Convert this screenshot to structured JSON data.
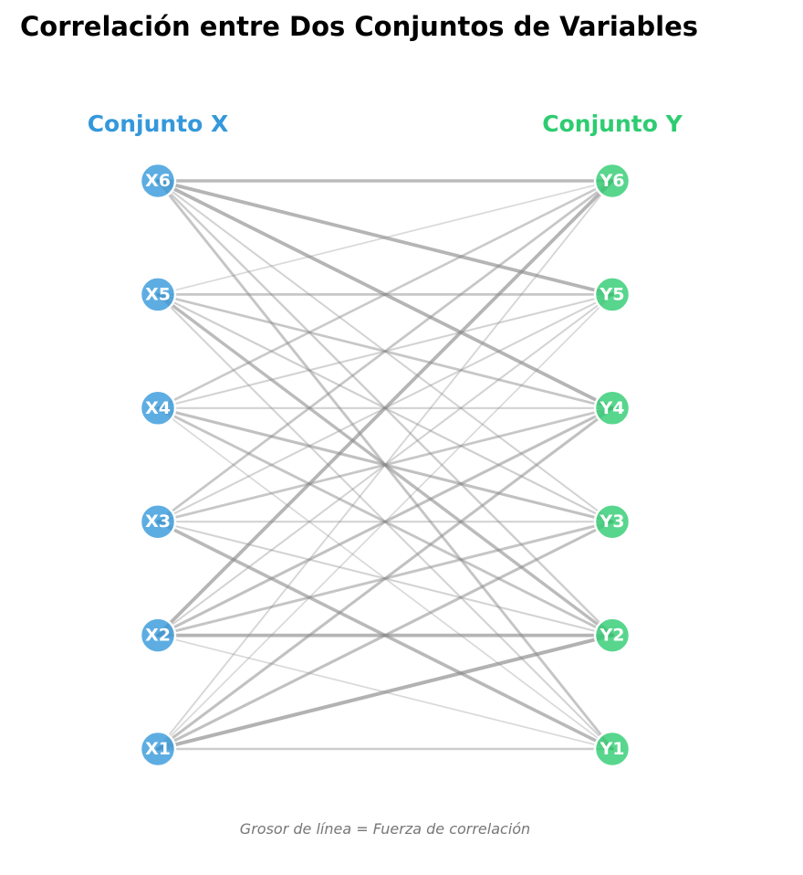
{
  "title": "Correlación entre Dos Conjuntos de Variables",
  "left_group": {
    "label": "Conjunto X",
    "color": "#3498db",
    "nodes": [
      "X1",
      "X2",
      "X3",
      "X4",
      "X5",
      "X6"
    ]
  },
  "right_group": {
    "label": "Conjunto Y",
    "color": "#2ecc71",
    "nodes": [
      "Y1",
      "Y2",
      "Y3",
      "Y4",
      "Y5",
      "Y6"
    ]
  },
  "footnote": "Grosor de línea = Fuerza de correlación",
  "edge_color": "#888888",
  "edges": [
    {
      "from": "X1",
      "to": "Y1",
      "strength": 0.4
    },
    {
      "from": "X1",
      "to": "Y2",
      "strength": 0.85
    },
    {
      "from": "X1",
      "to": "Y3",
      "strength": 0.6
    },
    {
      "from": "X1",
      "to": "Y4",
      "strength": 0.6
    },
    {
      "from": "X1",
      "to": "Y5",
      "strength": 0.2
    },
    {
      "from": "X1",
      "to": "Y6",
      "strength": 0.25
    },
    {
      "from": "X2",
      "to": "Y1",
      "strength": 0.2
    },
    {
      "from": "X2",
      "to": "Y2",
      "strength": 0.8
    },
    {
      "from": "X2",
      "to": "Y3",
      "strength": 0.55
    },
    {
      "from": "X2",
      "to": "Y4",
      "strength": 0.6
    },
    {
      "from": "X2",
      "to": "Y5",
      "strength": 0.3
    },
    {
      "from": "X2",
      "to": "Y6",
      "strength": 0.8
    },
    {
      "from": "X3",
      "to": "Y1",
      "strength": 0.75
    },
    {
      "from": "X3",
      "to": "Y2",
      "strength": 0.3
    },
    {
      "from": "X3",
      "to": "Y3",
      "strength": 0.3
    },
    {
      "from": "X3",
      "to": "Y4",
      "strength": 0.5
    },
    {
      "from": "X3",
      "to": "Y5",
      "strength": 0.3
    },
    {
      "from": "X3",
      "to": "Y6",
      "strength": 0.5
    },
    {
      "from": "X4",
      "to": "Y1",
      "strength": 0.2
    },
    {
      "from": "X4",
      "to": "Y2",
      "strength": 0.55
    },
    {
      "from": "X4",
      "to": "Y3",
      "strength": 0.6
    },
    {
      "from": "X4",
      "to": "Y4",
      "strength": 0.3
    },
    {
      "from": "X4",
      "to": "Y5",
      "strength": 0.3
    },
    {
      "from": "X4",
      "to": "Y6",
      "strength": 0.45
    },
    {
      "from": "X5",
      "to": "Y1",
      "strength": 0.3
    },
    {
      "from": "X5",
      "to": "Y2",
      "strength": 0.7
    },
    {
      "from": "X5",
      "to": "Y3",
      "strength": 0.35
    },
    {
      "from": "X5",
      "to": "Y4",
      "strength": 0.5
    },
    {
      "from": "X5",
      "to": "Y5",
      "strength": 0.5
    },
    {
      "from": "X5",
      "to": "Y6",
      "strength": 0.2
    },
    {
      "from": "X6",
      "to": "Y1",
      "strength": 0.55
    },
    {
      "from": "X6",
      "to": "Y2",
      "strength": 0.4
    },
    {
      "from": "X6",
      "to": "Y3",
      "strength": 0.3
    },
    {
      "from": "X6",
      "to": "Y4",
      "strength": 0.8
    },
    {
      "from": "X6",
      "to": "Y5",
      "strength": 0.8
    },
    {
      "from": "X6",
      "to": "Y6",
      "strength": 0.7
    }
  ]
}
